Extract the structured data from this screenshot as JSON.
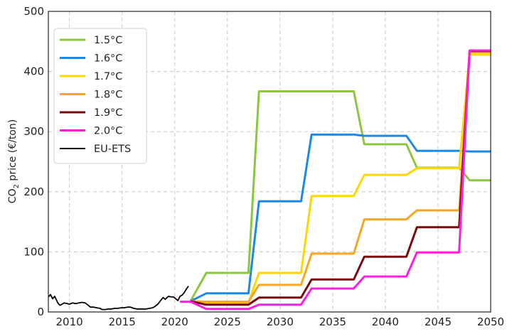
{
  "chart_data": {
    "type": "line",
    "title": "",
    "xlabel": "",
    "ylabel_main": "CO",
    "ylabel_sub": "2",
    "ylabel_rest": " price (€/ton)",
    "xlim": [
      2008,
      2050
    ],
    "ylim": [
      0,
      500
    ],
    "xticks": [
      2010,
      2015,
      2020,
      2025,
      2030,
      2035,
      2040,
      2045,
      2050
    ],
    "yticks": [
      0,
      100,
      200,
      300,
      400,
      500
    ],
    "grid": true,
    "legend_position": "top-left",
    "series": [
      {
        "name": "1.5°C",
        "color": "#8cc63f",
        "points": [
          [
            2021.5,
            18
          ],
          [
            2023,
            65
          ],
          [
            2027,
            65
          ],
          [
            2028,
            367
          ],
          [
            2037,
            367
          ],
          [
            2038,
            279
          ],
          [
            2042,
            279
          ],
          [
            2043,
            240
          ],
          [
            2047,
            240
          ],
          [
            2048,
            219
          ],
          [
            2050,
            219
          ]
        ]
      },
      {
        "name": "1.6°C",
        "color": "#1e88e5",
        "points": [
          [
            2021.5,
            18
          ],
          [
            2023,
            31
          ],
          [
            2027,
            31
          ],
          [
            2028,
            184
          ],
          [
            2032,
            184
          ],
          [
            2033,
            295
          ],
          [
            2037,
            295
          ],
          [
            2038,
            293
          ],
          [
            2042,
            293
          ],
          [
            2043,
            268
          ],
          [
            2047,
            268
          ],
          [
            2048,
            267
          ],
          [
            2050,
            267
          ]
        ]
      },
      {
        "name": "1.7°C",
        "color": "#ffd700",
        "points": [
          [
            2021.5,
            18
          ],
          [
            2023,
            15
          ],
          [
            2027,
            15
          ],
          [
            2028,
            65
          ],
          [
            2032,
            65
          ],
          [
            2033,
            193
          ],
          [
            2037,
            193
          ],
          [
            2038,
            228
          ],
          [
            2042,
            228
          ],
          [
            2043,
            239
          ],
          [
            2047,
            239
          ],
          [
            2048,
            428
          ],
          [
            2050,
            428
          ]
        ]
      },
      {
        "name": "1.8°C",
        "color": "#f5a623",
        "points": [
          [
            2021.5,
            18
          ],
          [
            2023,
            17
          ],
          [
            2027,
            17
          ],
          [
            2028,
            45
          ],
          [
            2032,
            45
          ],
          [
            2033,
            97
          ],
          [
            2037,
            97
          ],
          [
            2038,
            154
          ],
          [
            2042,
            154
          ],
          [
            2043,
            169
          ],
          [
            2047,
            169
          ],
          [
            2048,
            432
          ],
          [
            2050,
            432
          ]
        ]
      },
      {
        "name": "1.9°C",
        "color": "#7b0a0a",
        "points": [
          [
            2021.5,
            18
          ],
          [
            2023,
            12
          ],
          [
            2027,
            12
          ],
          [
            2028,
            24
          ],
          [
            2032,
            24
          ],
          [
            2033,
            54
          ],
          [
            2037,
            54
          ],
          [
            2038,
            92
          ],
          [
            2042,
            92
          ],
          [
            2043,
            141
          ],
          [
            2047,
            141
          ],
          [
            2048,
            434
          ],
          [
            2050,
            434
          ]
        ]
      },
      {
        "name": "2.0°C",
        "color": "#ff1de0",
        "points": [
          [
            2020.5,
            17
          ],
          [
            2021.5,
            17
          ],
          [
            2023,
            5
          ],
          [
            2027,
            5
          ],
          [
            2028,
            12
          ],
          [
            2032,
            12
          ],
          [
            2033,
            39
          ],
          [
            2037,
            39
          ],
          [
            2038,
            59
          ],
          [
            2042,
            59
          ],
          [
            2043,
            99
          ],
          [
            2047,
            99
          ],
          [
            2048,
            435
          ],
          [
            2050,
            435
          ]
        ]
      },
      {
        "name": "EU-ETS",
        "color": "#000000",
        "points": [
          [
            2008.0,
            25
          ],
          [
            2008.2,
            29
          ],
          [
            2008.4,
            22
          ],
          [
            2008.6,
            26
          ],
          [
            2008.9,
            15
          ],
          [
            2009.1,
            11
          ],
          [
            2009.3,
            13
          ],
          [
            2009.5,
            15
          ],
          [
            2009.8,
            14
          ],
          [
            2010.0,
            13
          ],
          [
            2010.3,
            15
          ],
          [
            2010.6,
            14
          ],
          [
            2010.9,
            15
          ],
          [
            2011.2,
            16
          ],
          [
            2011.5,
            15
          ],
          [
            2011.8,
            11
          ],
          [
            2012.0,
            8
          ],
          [
            2012.3,
            8
          ],
          [
            2012.6,
            7
          ],
          [
            2012.9,
            6
          ],
          [
            2013.1,
            4
          ],
          [
            2013.4,
            4
          ],
          [
            2013.7,
            5
          ],
          [
            2014.0,
            5
          ],
          [
            2014.3,
            6
          ],
          [
            2014.6,
            6
          ],
          [
            2014.9,
            7
          ],
          [
            2015.2,
            7
          ],
          [
            2015.5,
            8
          ],
          [
            2015.8,
            8
          ],
          [
            2016.1,
            6
          ],
          [
            2016.4,
            5
          ],
          [
            2016.7,
            5
          ],
          [
            2017.0,
            5
          ],
          [
            2017.3,
            5
          ],
          [
            2017.6,
            6
          ],
          [
            2017.9,
            7
          ],
          [
            2018.1,
            9
          ],
          [
            2018.4,
            13
          ],
          [
            2018.7,
            20
          ],
          [
            2018.9,
            24
          ],
          [
            2019.1,
            21
          ],
          [
            2019.4,
            26
          ],
          [
            2019.7,
            25
          ],
          [
            2019.9,
            25
          ],
          [
            2020.1,
            22
          ],
          [
            2020.3,
            19
          ],
          [
            2020.5,
            26
          ],
          [
            2020.7,
            28
          ],
          [
            2020.9,
            32
          ],
          [
            2021.1,
            38
          ],
          [
            2021.3,
            43
          ]
        ]
      }
    ]
  }
}
